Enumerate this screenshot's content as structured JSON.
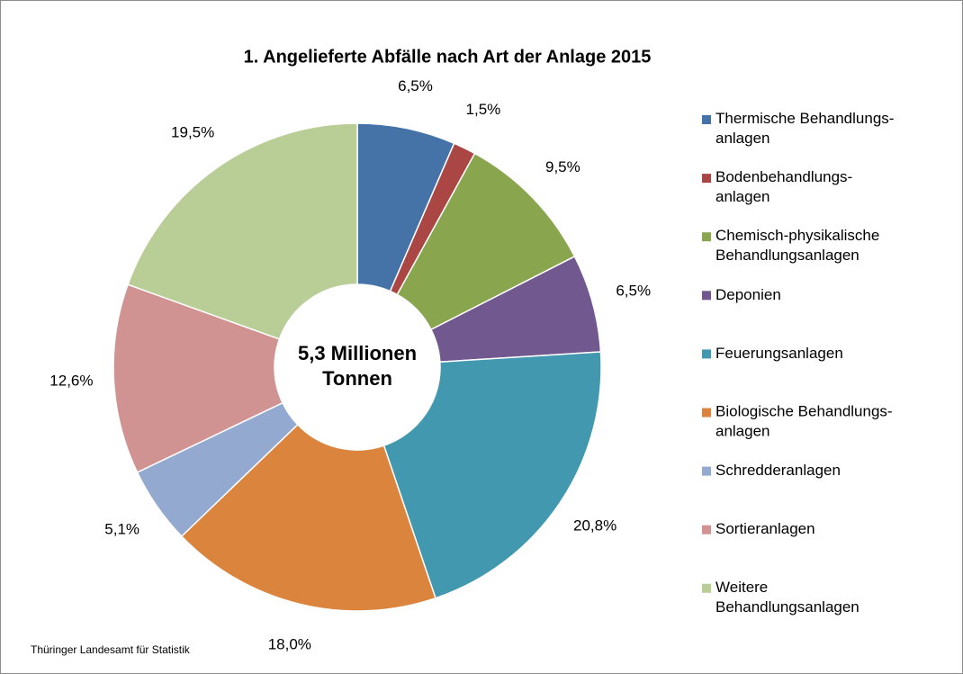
{
  "chart_data": {
    "type": "donut",
    "title": "1. Angelieferte Abfälle nach Art der Anlage 2015",
    "center_label": "5,3 Millionen\nTonnen",
    "source": "Thüringer Landesamt für Statistik",
    "categories": [
      "Thermische Behandlungs-\nanlagen",
      "Bodenbehandlungs-\nanlagen",
      "Chemisch-physikalische\nBehandlungsanlagen",
      "Deponien",
      "Feuerungsanlagen",
      "Biologische Behandlungs-\nanlagen",
      "Schredderanlagen",
      "Sortieranlagen",
      "Weitere\nBehandlungsanlagen"
    ],
    "values": [
      6.5,
      1.5,
      9.5,
      6.5,
      20.8,
      18.0,
      5.1,
      12.6,
      19.5
    ],
    "value_labels": [
      "6,5%",
      "1,5%",
      "9,5%",
      "6,5%",
      "20,8%",
      "18,0%",
      "5,1%",
      "12,6%",
      "19,5%"
    ],
    "colors": [
      "#4572a7",
      "#aa4643",
      "#89a54e",
      "#71588f",
      "#4198af",
      "#db843d",
      "#93a9cf",
      "#d19392",
      "#b9cd96"
    ],
    "legend": "right"
  }
}
